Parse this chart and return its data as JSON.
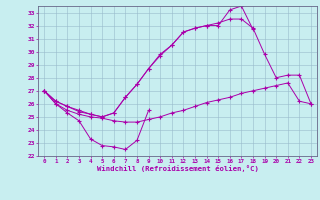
{
  "xlabel": "Windchill (Refroidissement éolien,°C)",
  "background_color": "#c8eef0",
  "line_color": "#aa00aa",
  "xlim": [
    -0.5,
    23.5
  ],
  "ylim": [
    22,
    33.5
  ],
  "xticks": [
    0,
    1,
    2,
    3,
    4,
    5,
    6,
    7,
    8,
    9,
    10,
    11,
    12,
    13,
    14,
    15,
    16,
    17,
    18,
    19,
    20,
    21,
    22,
    23
  ],
  "yticks": [
    22,
    23,
    24,
    25,
    26,
    27,
    28,
    29,
    30,
    31,
    32,
    33
  ],
  "grid_color": "#99bbcc",
  "series1_x": [
    0,
    1,
    2,
    3,
    4,
    5,
    6,
    7,
    8,
    9
  ],
  "series1_y": [
    27.0,
    26.0,
    25.3,
    24.7,
    23.3,
    22.8,
    22.7,
    22.5,
    23.2,
    25.5
  ],
  "series2_x": [
    0,
    1,
    2,
    3,
    4,
    5,
    6,
    7,
    8,
    9,
    10,
    11,
    12,
    13,
    14,
    15,
    16,
    17,
    18,
    19,
    20,
    21,
    22,
    23
  ],
  "series2_y": [
    27.0,
    26.0,
    25.5,
    25.2,
    25.0,
    24.9,
    24.7,
    24.6,
    24.6,
    24.8,
    25.0,
    25.3,
    25.5,
    25.8,
    26.1,
    26.3,
    26.5,
    26.8,
    27.0,
    27.2,
    27.4,
    27.6,
    26.2,
    26.0
  ],
  "series3_x": [
    0,
    1,
    2,
    3,
    4,
    5,
    6,
    7,
    8,
    9,
    10,
    11,
    12,
    13,
    14,
    15,
    16,
    17,
    18
  ],
  "series3_y": [
    27.0,
    26.2,
    25.8,
    25.4,
    25.2,
    25.0,
    25.3,
    26.5,
    27.5,
    28.7,
    29.8,
    30.5,
    31.5,
    31.8,
    32.0,
    32.0,
    33.2,
    33.5,
    31.7
  ],
  "series4_x": [
    0,
    1,
    2,
    3,
    4,
    5,
    6,
    7,
    8,
    9,
    10,
    11,
    12,
    13,
    14,
    15,
    16,
    17,
    18,
    19,
    20,
    21,
    22,
    23
  ],
  "series4_y": [
    27.0,
    26.2,
    25.8,
    25.5,
    25.2,
    25.0,
    25.3,
    26.5,
    27.5,
    28.7,
    29.7,
    30.5,
    31.5,
    31.8,
    32.0,
    32.2,
    32.5,
    32.5,
    31.8,
    29.8,
    28.0,
    28.2,
    28.2,
    26.0
  ]
}
